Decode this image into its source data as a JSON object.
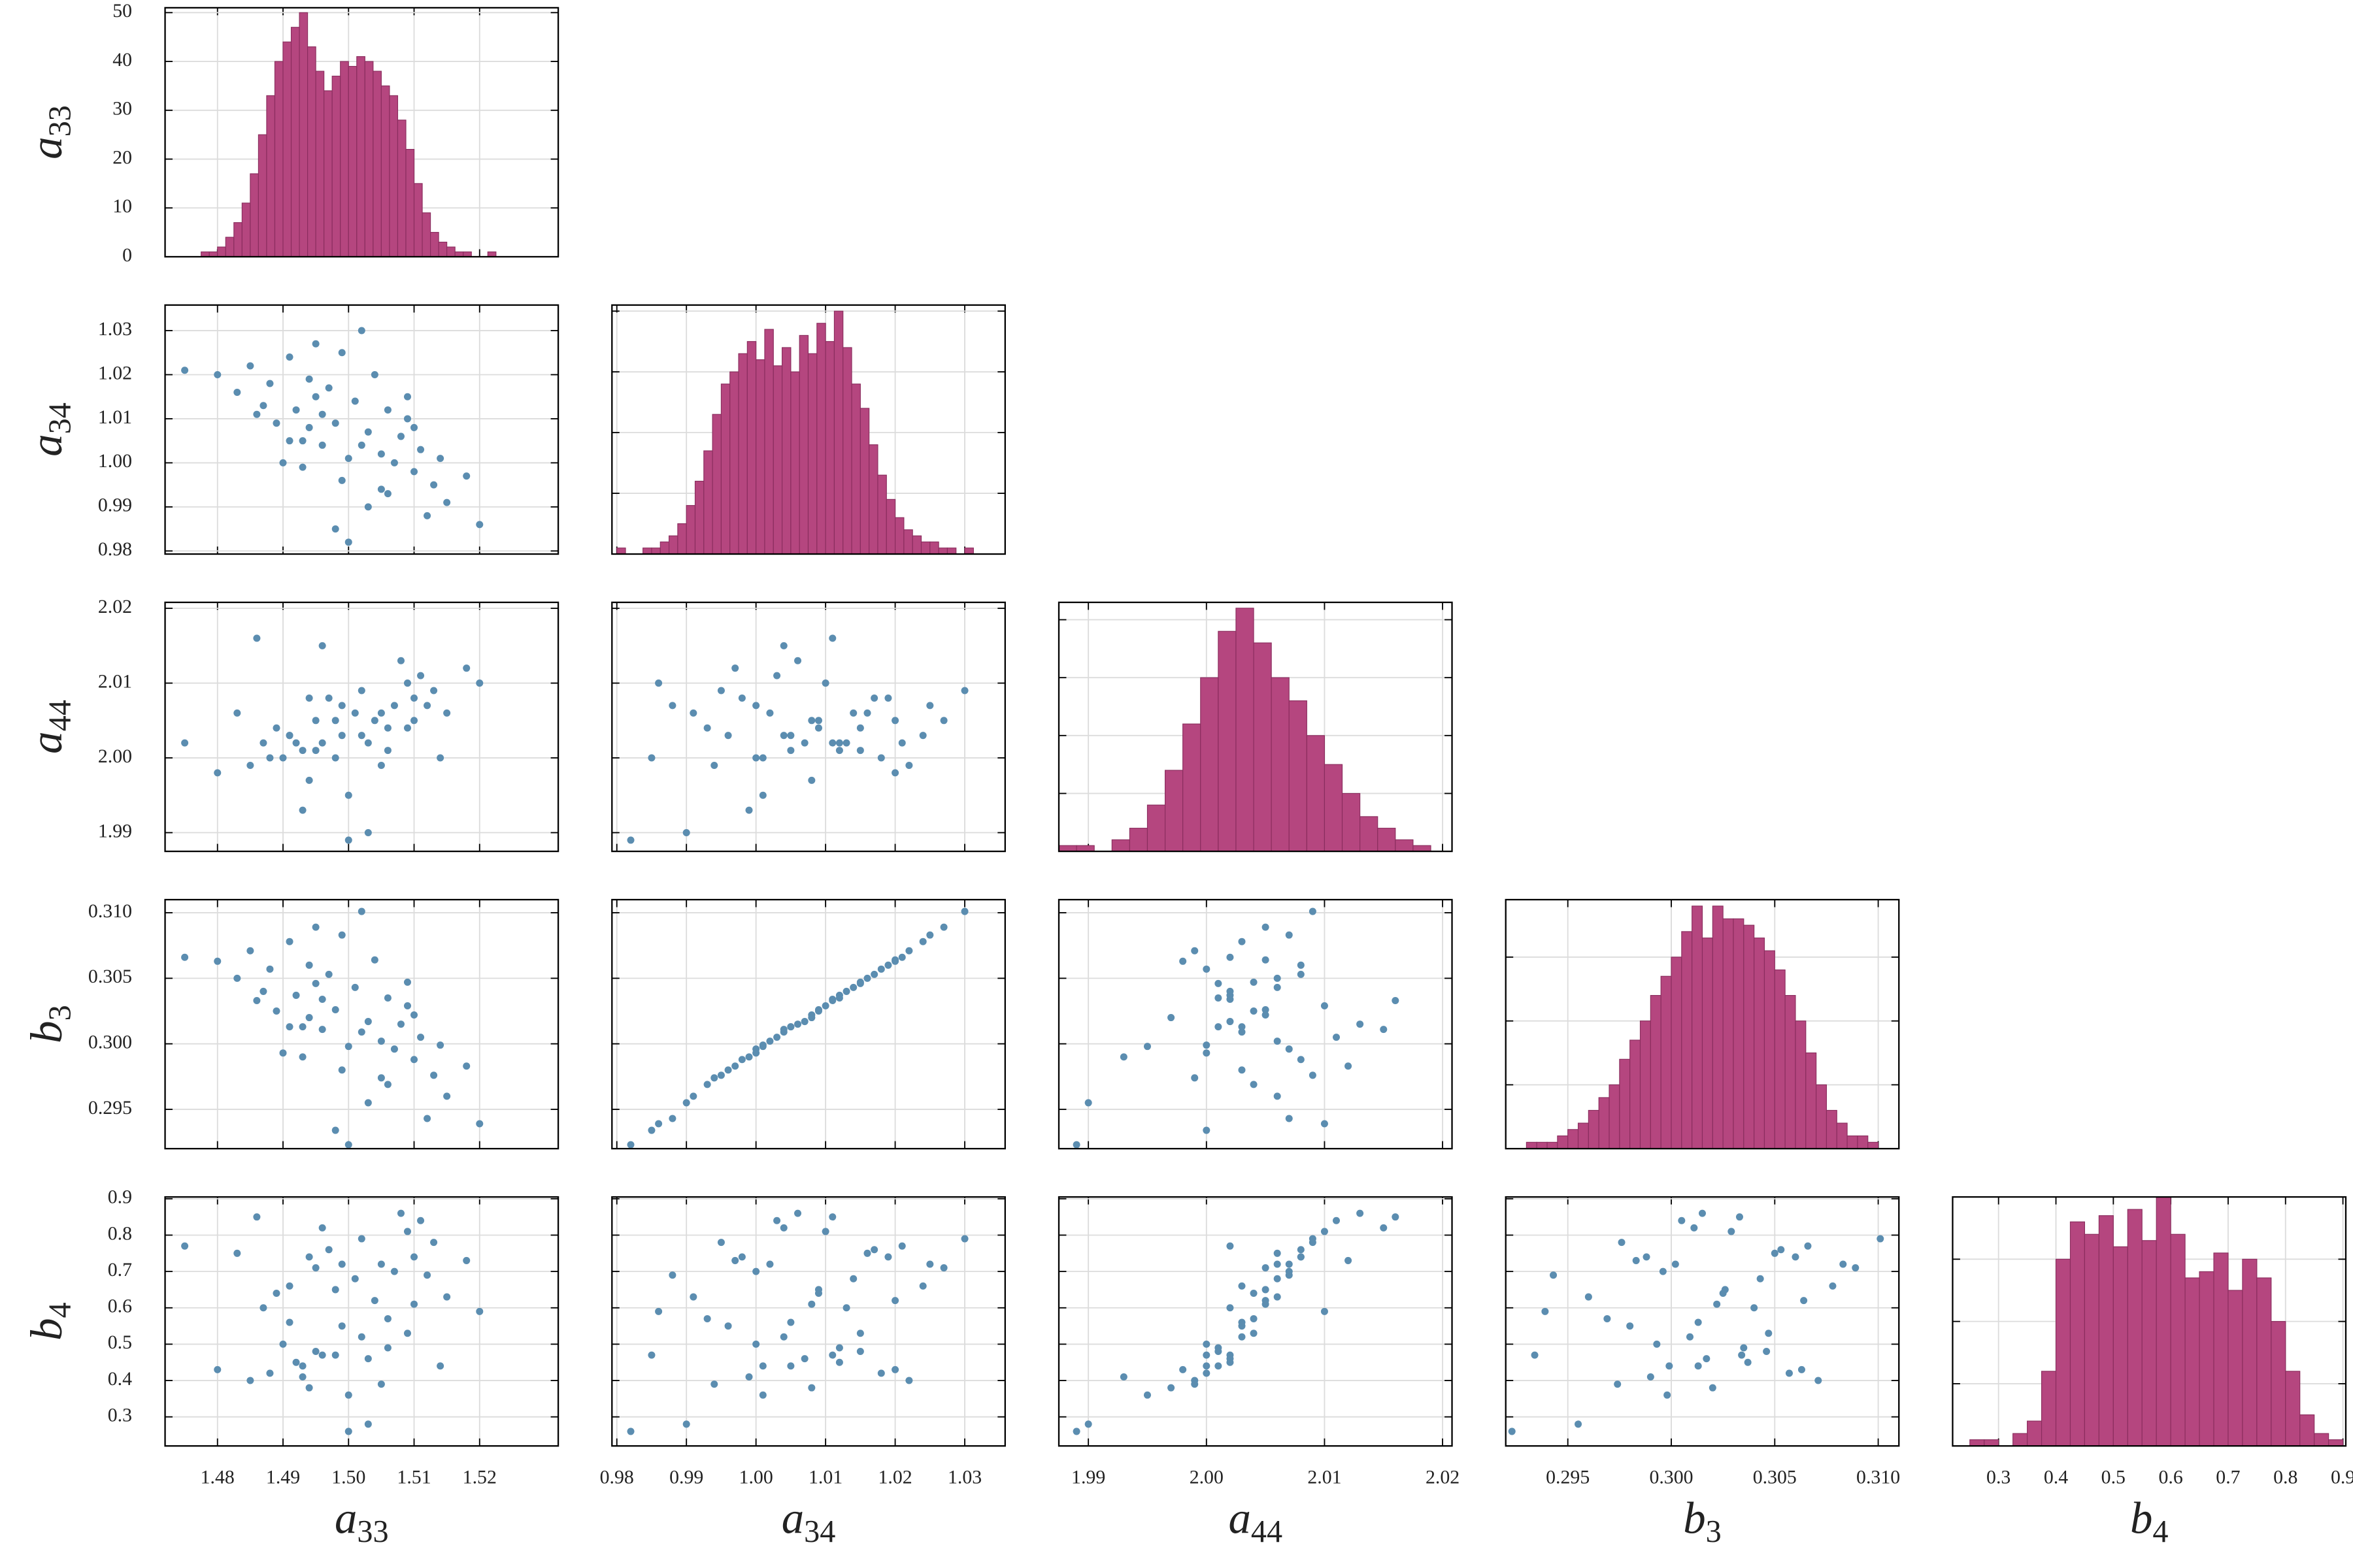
{
  "chart_data": {
    "type": "corner",
    "hist_color": "#b5467f",
    "hist_edge": "#8a2d5e",
    "scatter_color": "#5b8db0",
    "grid": true,
    "variables": [
      {
        "symbol": "a",
        "subscript": "33",
        "lim": [
          1.472,
          1.532
        ],
        "ticks": [
          1.48,
          1.49,
          {
            "value": 1.5,
            "label": "1.50"
          },
          1.51,
          1.52
        ],
        "hist_ylim": [
          0,
          51
        ],
        "hist_yticks": [
          0,
          10,
          20,
          30,
          40,
          50
        ],
        "bins": [
          1.475,
          1.47625,
          1.4775,
          1.47875,
          1.48,
          1.48125,
          1.4825,
          1.48375,
          1.485,
          1.48625,
          1.4875,
          1.48875,
          1.49,
          1.49125,
          1.4925,
          1.49375,
          1.495,
          1.49625,
          1.4975,
          1.49875,
          1.5,
          1.50125,
          1.5025,
          1.50375,
          1.505,
          1.50625,
          1.5075,
          1.50875,
          1.51,
          1.51125,
          1.5125,
          1.51375,
          1.515,
          1.51625,
          1.5175,
          1.51875,
          1.52,
          1.52125,
          1.5225,
          1.52375,
          1.525
        ],
        "counts": [
          0,
          0,
          1,
          1,
          2,
          4,
          7,
          11,
          17,
          25,
          33,
          40,
          44,
          47,
          50,
          43,
          38,
          34,
          37,
          40,
          39,
          41,
          40,
          38,
          35,
          33,
          28,
          22,
          15,
          9,
          5,
          3,
          2,
          1,
          1,
          0,
          0,
          1,
          0,
          0
        ]
      },
      {
        "symbol": "a",
        "subscript": "34",
        "lim": [
          0.9793,
          1.0358
        ],
        "ticks": [
          0.98,
          0.99,
          {
            "value": 1.0,
            "label": "1.00"
          },
          1.01,
          1.02,
          1.03
        ],
        "hist_ylim": [
          0,
          41
        ],
        "hist_yticks": [
          10,
          20,
          30,
          40
        ],
        "bins": [
          0.98,
          0.98125,
          0.9825,
          0.98375,
          0.985,
          0.98625,
          0.9875,
          0.98875,
          0.99,
          0.99125,
          0.9925,
          0.99375,
          0.995,
          0.99625,
          0.9975,
          0.99875,
          1.0,
          1.00125,
          1.0025,
          1.00375,
          1.005,
          1.00625,
          1.0075,
          1.00875,
          1.01,
          1.01125,
          1.0125,
          1.01375,
          1.015,
          1.01625,
          1.0175,
          1.01875,
          1.02,
          1.02125,
          1.0225,
          1.02375,
          1.025,
          1.02625,
          1.0275,
          1.02875,
          1.03,
          1.03125,
          1.0325,
          1.03375,
          1.035
        ],
        "counts": [
          1,
          0,
          0,
          1,
          1,
          2,
          3,
          5,
          8,
          12,
          17,
          23,
          28,
          30,
          33,
          35,
          32,
          37,
          31,
          34,
          30,
          36,
          33,
          38,
          35,
          40,
          34,
          28,
          24,
          18,
          13,
          9,
          6,
          4,
          3,
          2,
          2,
          1,
          1,
          0,
          1,
          0,
          0,
          0
        ]
      },
      {
        "symbol": "a",
        "subscript": "44",
        "lim": [
          1.9875,
          2.0208
        ],
        "ticks": [
          1.99,
          {
            "value": 2.0,
            "label": "2.00"
          },
          2.01,
          2.02
        ],
        "hist_ylim": [
          0,
          43
        ],
        "hist_yticks": [
          10,
          20,
          30,
          40
        ],
        "bins": [
          1.9875,
          1.989,
          1.9905,
          1.992,
          1.9935,
          1.995,
          1.9965,
          1.998,
          1.9995,
          2.001,
          2.0025,
          2.004,
          2.0055,
          2.007,
          2.0085,
          2.01,
          2.0115,
          2.013,
          2.0145,
          2.016,
          2.0175,
          2.019,
          2.0205
        ],
        "counts": [
          1,
          1,
          0,
          2,
          4,
          8,
          14,
          22,
          30,
          38,
          42,
          36,
          30,
          26,
          20,
          15,
          10,
          6,
          4,
          2,
          1,
          0
        ]
      },
      {
        "symbol": "b",
        "subscript": "3",
        "lim": [
          0.292,
          0.311
        ],
        "ticks": [
          0.295,
          {
            "value": 0.3,
            "label": "0.300"
          },
          0.305,
          {
            "value": 0.31,
            "label": "0.310"
          }
        ],
        "hist_ylim": [
          0,
          39
        ],
        "hist_yticks": [
          10,
          20,
          30
        ],
        "bins": [
          0.2925,
          0.293,
          0.2935,
          0.294,
          0.2945,
          0.295,
          0.2955,
          0.296,
          0.2965,
          0.297,
          0.2975,
          0.298,
          0.2985,
          0.299,
          0.2995,
          0.3,
          0.3005,
          0.301,
          0.3015,
          0.302,
          0.3025,
          0.303,
          0.3035,
          0.304,
          0.3045,
          0.305,
          0.3055,
          0.306,
          0.3065,
          0.307,
          0.3075,
          0.308,
          0.3085,
          0.309,
          0.3095,
          0.31,
          0.3105
        ],
        "counts": [
          0,
          1,
          1,
          1,
          2,
          3,
          4,
          6,
          8,
          10,
          14,
          17,
          20,
          24,
          27,
          30,
          34,
          38,
          33,
          38,
          36,
          36,
          35,
          33,
          31,
          28,
          24,
          20,
          15,
          10,
          6,
          4,
          2,
          2,
          1,
          0
        ]
      },
      {
        "symbol": "b",
        "subscript": "4",
        "lim": [
          0.22,
          0.905
        ],
        "ticks": [
          0.3,
          0.4,
          0.5,
          0.6,
          0.7,
          0.8,
          0.9
        ],
        "hist_ylim": [
          0,
          40
        ],
        "hist_yticks": [
          10,
          20,
          30
        ],
        "bins": [
          0.25,
          0.275,
          0.3,
          0.325,
          0.35,
          0.375,
          0.4,
          0.425,
          0.45,
          0.475,
          0.5,
          0.525,
          0.55,
          0.575,
          0.6,
          0.625,
          0.65,
          0.675,
          0.7,
          0.725,
          0.75,
          0.775,
          0.8,
          0.825,
          0.85,
          0.875,
          0.9
        ],
        "counts": [
          1,
          1,
          0,
          2,
          4,
          12,
          30,
          36,
          34,
          37,
          32,
          38,
          33,
          40,
          34,
          27,
          28,
          31,
          25,
          30,
          27,
          20,
          12,
          5,
          2,
          1
        ]
      }
    ],
    "samples": [
      [
        1.492,
        1.012,
        2.002,
        0.3037,
        0.45
      ],
      [
        1.495,
        1.015,
        2.001,
        0.3046,
        0.48
      ],
      [
        1.505,
        1.002,
        2.006,
        0.3002,
        0.72
      ],
      [
        1.51,
        0.998,
        2.008,
        0.2988,
        0.74
      ],
      [
        1.488,
        1.018,
        2.0,
        0.3057,
        0.42
      ],
      [
        1.498,
        1.009,
        2.005,
        0.3026,
        0.65
      ],
      [
        1.502,
        1.004,
        2.003,
        0.3009,
        0.52
      ],
      [
        1.513,
        0.995,
        2.009,
        0.2976,
        0.78
      ],
      [
        1.485,
        1.022,
        1.999,
        0.3071,
        0.4
      ],
      [
        1.496,
        1.011,
        2.002,
        0.3034,
        0.47
      ],
      [
        1.507,
        1.0,
        2.007,
        0.2996,
        0.7
      ],
      [
        1.493,
        1.005,
        2.001,
        0.3013,
        0.44
      ],
      [
        1.501,
        1.014,
        2.006,
        0.3043,
        0.68
      ],
      [
        1.49,
        1.0,
        2.0,
        0.2993,
        0.5
      ],
      [
        1.509,
        1.01,
        2.01,
        0.3029,
        0.81
      ],
      [
        1.499,
        0.996,
        2.003,
        0.298,
        0.55
      ],
      [
        1.504,
        1.02,
        2.005,
        0.3064,
        0.62
      ],
      [
        1.494,
        1.008,
        1.997,
        0.302,
        0.38
      ],
      [
        1.511,
        1.003,
        2.011,
        0.3005,
        0.84
      ],
      [
        1.487,
        1.013,
        2.002,
        0.304,
        0.6
      ],
      [
        1.506,
        0.993,
        2.004,
        0.2969,
        0.57
      ],
      [
        1.497,
        1.017,
        2.008,
        0.3053,
        0.76
      ],
      [
        1.503,
        1.007,
        2.002,
        0.3017,
        0.46
      ],
      [
        1.491,
        1.024,
        2.003,
        0.3078,
        0.66
      ],
      [
        1.515,
        0.991,
        2.006,
        0.296,
        0.63
      ],
      [
        1.48,
        1.02,
        1.998,
        0.3063,
        0.43
      ],
      [
        1.508,
        1.006,
        2.013,
        0.3015,
        0.86
      ],
      [
        1.5,
        1.001,
        1.995,
        0.2998,
        0.36
      ],
      [
        1.495,
        1.027,
        2.005,
        0.3089,
        0.71
      ],
      [
        1.512,
        0.988,
        2.007,
        0.2943,
        0.69
      ],
      [
        1.489,
        1.009,
        2.004,
        0.3025,
        0.64
      ],
      [
        1.506,
        1.012,
        2.001,
        0.3035,
        0.49
      ],
      [
        1.498,
        0.985,
        2.0,
        0.2934,
        0.47
      ],
      [
        1.502,
        1.03,
        2.009,
        0.3101,
        0.79
      ],
      [
        1.518,
        0.997,
        2.012,
        0.2983,
        0.73
      ],
      [
        1.483,
        1.016,
        2.006,
        0.305,
        0.75
      ],
      [
        1.493,
        0.999,
        1.993,
        0.299,
        0.41
      ],
      [
        1.509,
        1.015,
        2.004,
        0.3047,
        0.53
      ],
      [
        1.496,
        1.004,
        2.015,
        0.3011,
        0.82
      ],
      [
        1.505,
        0.994,
        1.999,
        0.2974,
        0.39
      ],
      [
        1.475,
        1.021,
        2.002,
        0.3066,
        0.77
      ],
      [
        1.52,
        0.986,
        2.01,
        0.2939,
        0.59
      ],
      [
        1.499,
        1.025,
        2.007,
        0.3083,
        0.72
      ],
      [
        1.491,
        1.005,
        2.003,
        0.3013,
        0.56
      ],
      [
        1.514,
        1.001,
        2.0,
        0.2999,
        0.44
      ],
      [
        1.486,
        1.011,
        2.016,
        0.3033,
        0.85
      ],
      [
        1.503,
        0.99,
        1.99,
        0.2955,
        0.28
      ],
      [
        1.494,
        1.019,
        2.008,
        0.306,
        0.74
      ],
      [
        1.51,
        1.008,
        2.005,
        0.3022,
        0.61
      ],
      [
        1.5,
        0.982,
        1.989,
        0.2923,
        0.26
      ]
    ]
  }
}
